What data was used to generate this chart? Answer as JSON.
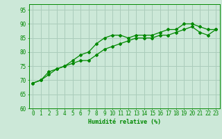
{
  "x": [
    0,
    1,
    2,
    3,
    4,
    5,
    6,
    7,
    8,
    9,
    10,
    11,
    12,
    13,
    14,
    15,
    16,
    17,
    18,
    19,
    20,
    21,
    22,
    23
  ],
  "line1": [
    69,
    70,
    73,
    74,
    75,
    77,
    79,
    80,
    83,
    85,
    86,
    86,
    85,
    86,
    86,
    86,
    87,
    88,
    88,
    90,
    90,
    89,
    88,
    88
  ],
  "line2": [
    69,
    70,
    72,
    74,
    75,
    76,
    77,
    77,
    79,
    81,
    82,
    83,
    84,
    85,
    85,
    85,
    86,
    86,
    87,
    88,
    89,
    87,
    86,
    88
  ],
  "xlabel": "Humidité relative (%)",
  "bg_color": "#cce8d8",
  "grid_color": "#aaccbb",
  "line_color": "#008800",
  "xlim": [
    -0.5,
    23.5
  ],
  "ylim": [
    60,
    97
  ],
  "yticks": [
    60,
    65,
    70,
    75,
    80,
    85,
    90,
    95
  ],
  "xticks": [
    0,
    1,
    2,
    3,
    4,
    5,
    6,
    7,
    8,
    9,
    10,
    11,
    12,
    13,
    14,
    15,
    16,
    17,
    18,
    19,
    20,
    21,
    22,
    23
  ],
  "tick_fontsize": 5.5,
  "xlabel_fontsize": 6.0
}
